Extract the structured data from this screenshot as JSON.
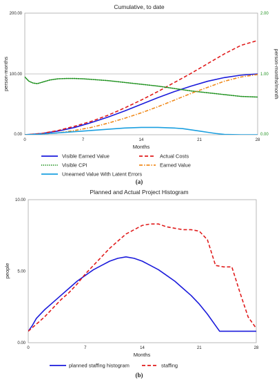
{
  "colors": {
    "blue": "#1a1adb",
    "red": "#e01b1b",
    "green": "#1a8f1a",
    "orange": "#f08a1c",
    "cyan": "#1a9fe0",
    "frame": "#9a9a9a",
    "grid": "#b5b5b5"
  },
  "chart_data": [
    {
      "type": "line",
      "panel_label": "(a)",
      "title": "Cumulative, to date",
      "xlabel": "Months",
      "ylabel": "person-months",
      "ylabel_right": "person-months/month",
      "xlim": [
        0,
        28
      ],
      "ylim": [
        0,
        200
      ],
      "ylim_right": [
        0,
        2
      ],
      "x_ticks": [
        "0",
        "7",
        "14",
        "21",
        "28"
      ],
      "y_ticks": [
        "0.00",
        "100.00",
        "200.00"
      ],
      "y_ticks_right": [
        "0.00",
        "1.00",
        "2.00"
      ],
      "grid": "horizontal at 100",
      "legend_position": "bottom",
      "series": [
        {
          "name": "Visible Earned Value",
          "axis": "left",
          "style": "solid",
          "color": "blue",
          "x": [
            0,
            2,
            4,
            6,
            8,
            10,
            12,
            14,
            16,
            18,
            20,
            22,
            24,
            26,
            28
          ],
          "y": [
            0,
            2,
            6,
            12,
            20,
            29,
            39,
            50,
            61,
            71,
            80,
            88,
            94,
            98,
            100
          ]
        },
        {
          "name": "Actual Costs",
          "axis": "left",
          "style": "dashed",
          "color": "red",
          "x": [
            0,
            2,
            4,
            6,
            8,
            10,
            12,
            14,
            16,
            18,
            20,
            22,
            24,
            26,
            28
          ],
          "y": [
            0,
            2,
            7,
            14,
            22,
            32,
            44,
            57,
            71,
            86,
            101,
            117,
            133,
            147,
            155
          ]
        },
        {
          "name": "Visible CPI",
          "axis": "right",
          "style": "dotted",
          "color": "green",
          "x": [
            0,
            0.5,
            1,
            1.5,
            2,
            3,
            4,
            5,
            6,
            7,
            8,
            10,
            12,
            14,
            16,
            18,
            20,
            22,
            24,
            26,
            28
          ],
          "y": [
            0.95,
            0.88,
            0.85,
            0.84,
            0.86,
            0.9,
            0.92,
            0.925,
            0.925,
            0.92,
            0.91,
            0.89,
            0.86,
            0.83,
            0.8,
            0.76,
            0.72,
            0.69,
            0.66,
            0.63,
            0.62
          ]
        },
        {
          "name": "Earned Value",
          "axis": "left",
          "style": "dashdot",
          "color": "orange",
          "x": [
            0,
            2,
            4,
            6,
            8,
            10,
            12,
            14,
            16,
            18,
            20,
            22,
            24,
            26,
            28
          ],
          "y": [
            0,
            1,
            3,
            7,
            12,
            19,
            27,
            36,
            46,
            57,
            68,
            78,
            88,
            95,
            99
          ]
        },
        {
          "name": "Unearned Value With Latent Errors",
          "axis": "left",
          "style": "solid",
          "color": "cyan",
          "x": [
            0,
            2,
            4,
            6,
            8,
            10,
            12,
            14,
            16,
            18,
            19,
            20,
            21,
            22,
            23,
            24,
            26,
            28
          ],
          "y": [
            0,
            1,
            3,
            5,
            7,
            9,
            11,
            12,
            12,
            11,
            10,
            8,
            6,
            4,
            2,
            0.5,
            0,
            0
          ]
        }
      ]
    },
    {
      "type": "line",
      "panel_label": "(b)",
      "title": "Planned and Actual Project Histogram",
      "xlabel": "Months",
      "ylabel": "people",
      "xlim": [
        0,
        28
      ],
      "ylim": [
        0,
        10
      ],
      "x_ticks": [
        "0",
        "7",
        "14",
        "21",
        "28"
      ],
      "y_ticks": [
        "0.00",
        "5.00",
        "10.00"
      ],
      "legend_position": "bottom",
      "series": [
        {
          "name": "planned staffing histogram",
          "style": "solid",
          "color": "blue",
          "x": [
            0,
            0.5,
            1,
            1.5,
            2,
            3,
            4,
            5,
            6,
            7,
            8,
            9,
            10,
            11,
            12,
            13,
            14,
            15,
            16,
            17,
            18,
            19,
            20,
            21,
            22,
            23,
            23.5,
            24,
            25,
            26,
            27,
            28
          ],
          "y": [
            0.8,
            1.2,
            1.7,
            2.0,
            2.3,
            2.8,
            3.3,
            3.8,
            4.3,
            4.7,
            5.1,
            5.4,
            5.7,
            5.9,
            6.0,
            5.9,
            5.7,
            5.4,
            5.1,
            4.7,
            4.3,
            3.8,
            3.3,
            2.7,
            2.0,
            1.2,
            0.8,
            0.8,
            0.8,
            0.8,
            0.8,
            0.8
          ]
        },
        {
          "name": "staffing",
          "style": "dashed",
          "color": "red",
          "x": [
            0,
            1,
            2,
            3,
            4,
            5,
            6,
            7,
            8,
            9,
            10,
            11,
            12,
            13,
            14,
            15,
            16,
            17,
            18,
            19,
            20,
            21,
            22,
            23,
            24,
            25,
            26,
            27,
            28
          ],
          "y": [
            0.8,
            1.3,
            1.8,
            2.4,
            3.0,
            3.5,
            4.1,
            4.8,
            5.4,
            6.0,
            6.6,
            7.1,
            7.6,
            7.9,
            8.2,
            8.3,
            8.3,
            8.1,
            8.0,
            7.9,
            7.9,
            7.8,
            7.2,
            5.4,
            5.3,
            5.3,
            3.5,
            1.8,
            1.0
          ]
        }
      ]
    }
  ]
}
